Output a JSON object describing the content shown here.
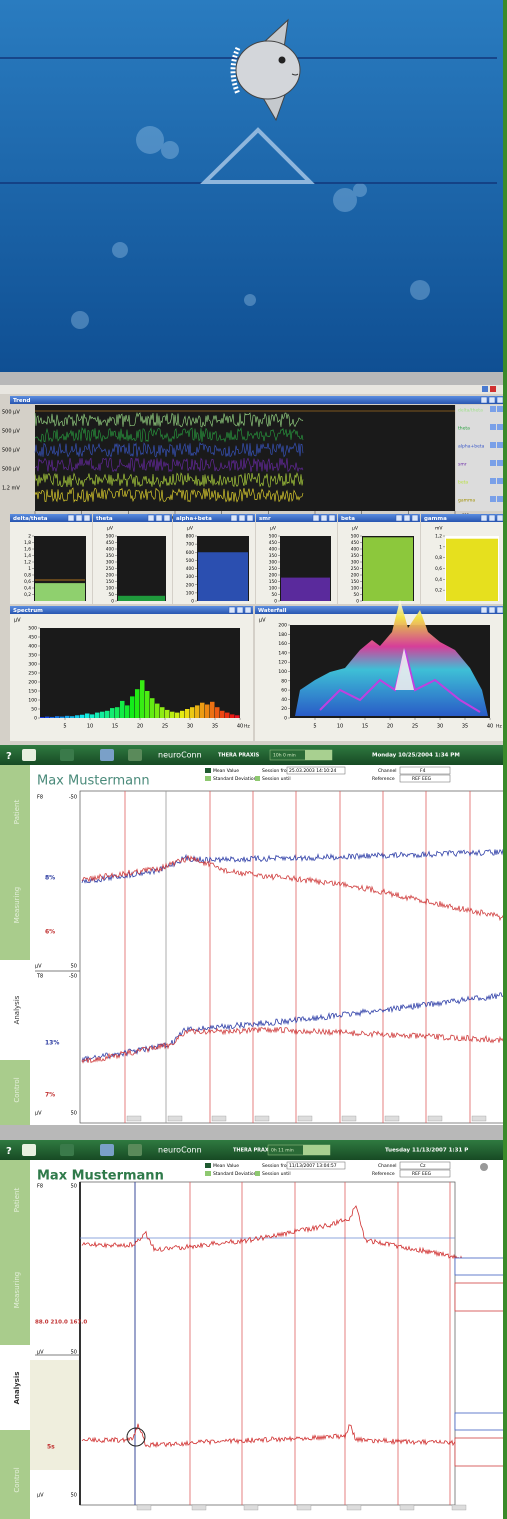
{
  "eeg": {
    "trend": {
      "title": "Trend",
      "y_labels": [
        "500 µV",
        "500 µV",
        "500 µV",
        "500 µV",
        "1,2 mV"
      ],
      "xlim": [
        0,
        180
      ],
      "xticks": [
        0,
        20,
        40,
        60,
        80,
        100,
        120,
        140,
        160,
        180
      ],
      "x_unit": "sec",
      "legend": [
        "delta/theta",
        "theta",
        "alpha+beta",
        "smr",
        "beta",
        "gamma"
      ]
    },
    "panels": [
      {
        "title": "delta/theta",
        "ylim": [
          0,
          2
        ],
        "yticks": [
          {
            "value": 0.2,
            "label": "0,2"
          },
          {
            "value": 0.4,
            "label": "0,4"
          },
          {
            "value": 0.6,
            "label": "0,6"
          },
          {
            "value": 0.8,
            "label": "0,8"
          },
          1,
          {
            "value": 1.2,
            "label": "1,2"
          },
          {
            "value": 1.4,
            "label": "1,4"
          },
          {
            "value": 1.6,
            "label": "1,6"
          },
          {
            "value": 1.8,
            "label": "1,8"
          },
          2
        ],
        "value": 0.55,
        "color": "#8fd06e"
      },
      {
        "title": "theta",
        "unit": "µV",
        "ylim": [
          0,
          500
        ],
        "yticks": [
          0,
          50,
          100,
          150,
          200,
          250,
          300,
          350,
          400,
          450,
          500
        ],
        "value": 40,
        "color": "#1f9a3c"
      },
      {
        "title": "alpha+beta",
        "unit": "µV",
        "ylim": [
          0,
          800
        ],
        "yticks": [
          0,
          100,
          200,
          300,
          400,
          500,
          600,
          700,
          800
        ],
        "value": 600,
        "color": "#2b4fb0"
      },
      {
        "title": "smr",
        "unit": "µV",
        "ylim": [
          0,
          500
        ],
        "yticks": [
          0,
          50,
          100,
          150,
          200,
          250,
          300,
          350,
          400,
          450,
          500
        ],
        "value": 180,
        "color": "#5a2a9c"
      },
      {
        "title": "beta",
        "unit": "µV",
        "ylim": [
          0,
          500
        ],
        "yticks": [
          0,
          50,
          100,
          150,
          200,
          250,
          300,
          350,
          400,
          450,
          500
        ],
        "value": 490,
        "color": "#8cc83c"
      },
      {
        "title": "gamma",
        "unit": "mV",
        "ylim": [
          0,
          1.2
        ],
        "yticks": [
          {
            "value": 0.2,
            "label": "0,2"
          },
          {
            "value": 0.4,
            "label": "0,4"
          },
          {
            "value": 0.6,
            "label": "0,6"
          },
          {
            "value": 0.8,
            "label": "0,8"
          },
          1,
          {
            "value": 1.2,
            "label": "1,2"
          }
        ],
        "value": 1.15,
        "color": "#e6e01e"
      }
    ],
    "spectrum": {
      "title": "Spectrum",
      "unit": "µV",
      "ylim": [
        0,
        500
      ],
      "yticks": [
        0,
        50,
        100,
        150,
        200,
        250,
        300,
        350,
        400,
        450,
        500
      ],
      "xlim": [
        0,
        40
      ],
      "xticks": [
        5,
        10,
        15,
        20,
        25,
        30,
        35,
        40
      ],
      "x_unit": "Hz",
      "x": [
        1,
        2,
        3,
        4,
        5,
        6,
        7,
        8,
        9,
        10,
        11,
        12,
        13,
        14,
        15,
        16,
        17,
        18,
        19,
        20,
        21,
        22,
        23,
        24,
        25,
        26,
        27,
        28,
        29,
        30,
        31,
        32,
        33,
        34,
        35,
        36,
        37,
        38,
        39,
        40
      ],
      "values": [
        5,
        8,
        6,
        10,
        8,
        12,
        10,
        15,
        18,
        25,
        20,
        30,
        35,
        40,
        55,
        60,
        95,
        70,
        120,
        160,
        210,
        150,
        110,
        80,
        60,
        45,
        35,
        30,
        40,
        50,
        60,
        70,
        85,
        75,
        90,
        60,
        40,
        30,
        20,
        15
      ]
    },
    "waterfall": {
      "title": "Waterfall",
      "unit": "µV",
      "ylim": [
        0,
        200
      ],
      "yticks": [
        0,
        20,
        40,
        60,
        80,
        100,
        120,
        140,
        160,
        180,
        200
      ],
      "xlim": [
        0,
        40
      ],
      "xticks": [
        5,
        10,
        15,
        20,
        25,
        30,
        35,
        40
      ],
      "x_unit": "Hz"
    }
  },
  "screen1": {
    "toolbar": {
      "help": "?",
      "brand": "neuroConn",
      "product": "THERA PRAXIS",
      "duration": "10h 0 min",
      "datetime": "Monday 10/25/2004 1:34 PM"
    },
    "patient": "Max Mustermann",
    "legend": [
      "Mean Value",
      "Standard Deviation"
    ],
    "session_from_label": "Session from",
    "session_from": "25.03.2003 14:10:24",
    "session_until_label": "Session until",
    "channel_label": "Channel",
    "channel": "F4",
    "reference_label": "Reference",
    "reference": "REF EEG",
    "tabs": [
      "Patient",
      "Measuring",
      "Analysis",
      "Control"
    ],
    "upper": {
      "channel": "F8",
      "top": -50,
      "blue_pct": "8%",
      "red_pct": "6%",
      "unit": "µV",
      "bottom": 50
    },
    "lower": {
      "channel": "T8",
      "top": -50,
      "blue_pct": "13%",
      "red_pct": "7%",
      "unit": "µV",
      "bottom": 50
    }
  },
  "screen2": {
    "toolbar": {
      "help": "?",
      "brand": "neuroConn",
      "product": "THERA PRAXIS",
      "duration": "0h 11 min",
      "datetime": "Tuesday 11/13/2007 1:31 P"
    },
    "patient": "Max Mustermann",
    "legend": [
      "Mean Value",
      "Standard Deviation"
    ],
    "session_from_label": "Session from",
    "session_from": "11/13/2007 13:04:57",
    "session_until_label": "Session until",
    "channel_label": "Channel",
    "channel": "Cz",
    "reference_label": "Reference",
    "reference": "REF EEG",
    "tabs": [
      "Patient",
      "Measuring",
      "Analysis",
      "Control"
    ],
    "upper": {
      "channel": "F8",
      "top": 50,
      "values": "88.0 210.0 167.0",
      "unit": "µV",
      "bottom": 50
    },
    "lower": {
      "pct": "5s",
      "unit": "µV",
      "bottom": 50
    }
  }
}
